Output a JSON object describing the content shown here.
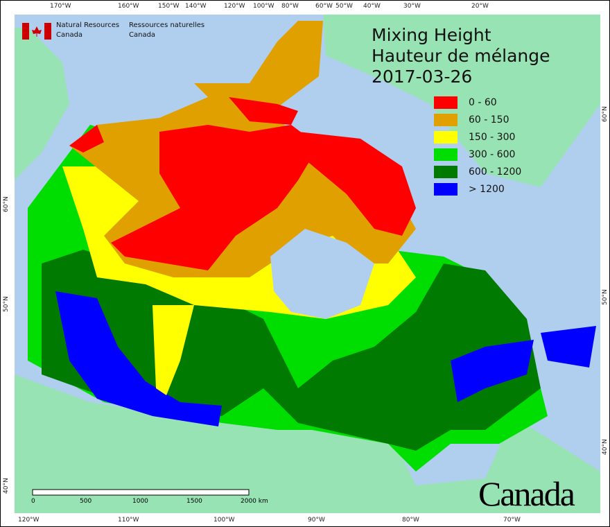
{
  "title": {
    "line1": "Mixing Height",
    "line2": "Hauteur de mélange",
    "date": "2017-03-26"
  },
  "legend": [
    {
      "label": "0 - 60",
      "color": "#ff0000"
    },
    {
      "label": "60 - 150",
      "color": "#e0a000"
    },
    {
      "label": "150 - 300",
      "color": "#ffff00"
    },
    {
      "label": "300 - 600",
      "color": "#00dd00"
    },
    {
      "label": "600 - 1200",
      "color": "#007a00"
    },
    {
      "label": "> 1200",
      "color": "#0000ff"
    }
  ],
  "agency": {
    "en1": "Natural Resources",
    "en2": "Canada",
    "fr1": "Ressources naturelles",
    "fr2": "Canada"
  },
  "wordmark": "Canada",
  "scale_bar": {
    "labels": [
      "0",
      "500",
      "1000",
      "1500",
      "2000 km"
    ]
  },
  "top_ticks": [
    "170°W",
    "160°W",
    "150°W",
    "140°W",
    "120°W",
    "100°W",
    "80°W",
    "60°W",
    "50°W",
    "40°W",
    "30°W",
    "20°W"
  ],
  "bottom_ticks": [
    "120°W",
    "110°W",
    "100°W",
    "90°W",
    "80°W",
    "70°W"
  ],
  "left_ticks": [
    "60°N",
    "50°N",
    "40°N"
  ],
  "right_ticks": [
    "60°N",
    "50°N",
    "40°N"
  ],
  "colors": {
    "ocean": "#b0cfef",
    "land": "#98e3b4"
  }
}
